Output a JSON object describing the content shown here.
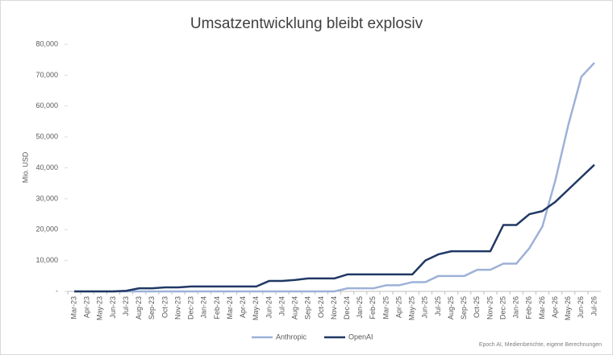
{
  "chart_data": {
    "type": "line",
    "title": "Umsatzentwicklung bleibt explosiv",
    "y_label": "Mio. USD",
    "source": "Epoch AI, Medienberichte, eigene Berechnungen",
    "categories": [
      "Mar-23",
      "Apr-23",
      "May-23",
      "Jun-23",
      "Jul-23",
      "Aug-23",
      "Sep-23",
      "Oct-23",
      "Nov-23",
      "Dec-23",
      "Jan-24",
      "Feb-24",
      "Mar-24",
      "Apr-24",
      "May-24",
      "Jun-24",
      "Jul-24",
      "Aug-24",
      "Sep-24",
      "Oct-24",
      "Nov-24",
      "Dec-24",
      "Jan-25",
      "Feb-25",
      "Mar-25",
      "Apr-25",
      "May-25",
      "Jun-25",
      "Jul-25",
      "Aug-25",
      "Sep-25",
      "Oct-25",
      "Nov-25",
      "Dec-25",
      "Jan-26",
      "Feb-26",
      "Mar-26",
      "Apr-26",
      "May-26",
      "Jun-26",
      "Jul-26"
    ],
    "series": [
      {
        "name": "Anthropic",
        "color": "#9db1d8",
        "values": [
          0,
          0,
          0,
          0,
          0,
          0,
          0,
          0,
          0,
          0,
          0,
          0,
          0,
          0,
          0,
          0,
          0,
          0,
          0,
          0,
          0,
          1000,
          1000,
          1000,
          2000,
          2000,
          3000,
          3000,
          5000,
          5000,
          5000,
          7000,
          7000,
          9000,
          9000,
          14000,
          21000,
          36000,
          54000,
          69500,
          74000
        ]
      },
      {
        "name": "OpenAI",
        "color": "#203864",
        "values": [
          0,
          0,
          0,
          0,
          200,
          1000,
          1000,
          1300,
          1300,
          1600,
          1600,
          1600,
          1600,
          1600,
          1600,
          3400,
          3400,
          3700,
          4200,
          4200,
          4200,
          5500,
          5500,
          5500,
          5500,
          5500,
          5500,
          10000,
          12000,
          13000,
          13000,
          13000,
          13000,
          21500,
          21500,
          25000,
          26000,
          29000,
          33000,
          37000,
          41000
        ]
      }
    ],
    "ylim": [
      0,
      80000
    ],
    "yticks": [
      {
        "value": 0,
        "label": "-"
      },
      {
        "value": 10000,
        "label": "10,000"
      },
      {
        "value": 20000,
        "label": "20,000"
      },
      {
        "value": 30000,
        "label": "30,000"
      },
      {
        "value": 40000,
        "label": "40,000"
      },
      {
        "value": 50000,
        "label": "50,000"
      },
      {
        "value": 60000,
        "label": "60,000"
      },
      {
        "value": 70000,
        "label": "70,000"
      },
      {
        "value": 80000,
        "label": "80,000"
      }
    ],
    "legend": "bottom"
  }
}
